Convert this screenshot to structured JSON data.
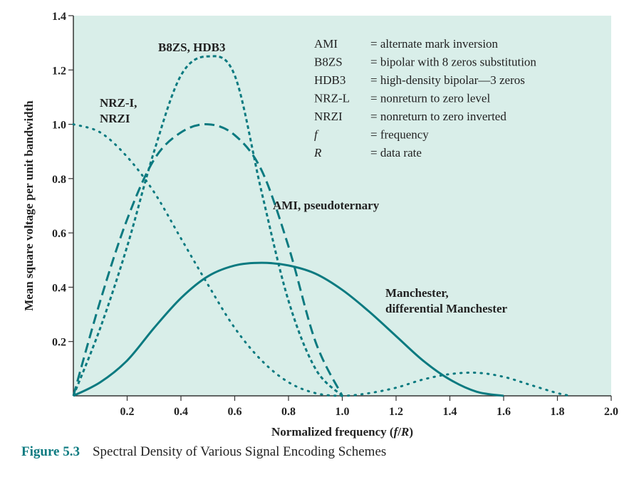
{
  "chart_data": {
    "type": "line",
    "title": "",
    "xlabel": "Normalized frequency (f/R)",
    "ylabel": "Mean square voltage per unit bandwidth",
    "xlim": [
      0,
      2.0
    ],
    "ylim": [
      0,
      1.4
    ],
    "x_ticks": [
      "0.2",
      "0.4",
      "0.6",
      "0.8",
      "1.0",
      "1.2",
      "1.4",
      "1.6",
      "1.8",
      "2.0"
    ],
    "y_ticks": [
      "0.2",
      "0.4",
      "0.6",
      "0.8",
      "1.0",
      "1.2",
      "1.4"
    ],
    "background_color": "#d9eee9",
    "line_color": "#0b7a80",
    "grid": false,
    "series": [
      {
        "name": "NRZ-I, NRZI",
        "style": "dotted",
        "x": [
          0,
          0.1,
          0.2,
          0.3,
          0.4,
          0.5,
          0.6,
          0.7,
          0.8,
          0.9,
          1.0,
          1.1,
          1.2,
          1.3,
          1.4,
          1.5,
          1.6,
          1.7,
          1.8,
          1.85
        ],
        "y": [
          1.0,
          0.97,
          0.88,
          0.75,
          0.58,
          0.41,
          0.25,
          0.13,
          0.05,
          0.01,
          0.0,
          0.01,
          0.03,
          0.06,
          0.08,
          0.085,
          0.07,
          0.04,
          0.01,
          0.0
        ]
      },
      {
        "name": "AMI, pseudoternary",
        "style": "dashed",
        "x": [
          0,
          0.1,
          0.2,
          0.3,
          0.4,
          0.5,
          0.6,
          0.7,
          0.8,
          0.9,
          1.0
        ],
        "y": [
          0.0,
          0.35,
          0.65,
          0.87,
          0.97,
          1.0,
          0.96,
          0.83,
          0.55,
          0.2,
          0.0
        ]
      },
      {
        "name": "B8ZS, HDB3",
        "style": "short-dash",
        "x": [
          0,
          0.1,
          0.2,
          0.3,
          0.4,
          0.5,
          0.6,
          0.7,
          0.8,
          0.9,
          1.0
        ],
        "y": [
          0.0,
          0.25,
          0.55,
          0.9,
          1.18,
          1.25,
          1.18,
          0.75,
          0.35,
          0.1,
          0.0
        ]
      },
      {
        "name": "Manchester, differential Manchester",
        "style": "solid",
        "x": [
          0,
          0.1,
          0.2,
          0.3,
          0.4,
          0.5,
          0.6,
          0.7,
          0.8,
          0.9,
          1.0,
          1.1,
          1.2,
          1.3,
          1.4,
          1.5,
          1.6
        ],
        "y": [
          0.0,
          0.05,
          0.13,
          0.25,
          0.36,
          0.44,
          0.48,
          0.49,
          0.48,
          0.45,
          0.39,
          0.31,
          0.22,
          0.13,
          0.06,
          0.015,
          0.0
        ]
      }
    ],
    "series_labels": [
      {
        "lines": [
          "NRZ-I,",
          "NRZI"
        ]
      },
      {
        "lines": [
          "B8ZS, HDB3"
        ]
      },
      {
        "lines": [
          "AMI, pseudoternary"
        ]
      },
      {
        "lines": [
          "Manchester,",
          "differential Manchester"
        ]
      }
    ],
    "legend": {
      "placement": "top-right",
      "entries": [
        {
          "term": "AMI",
          "definition": "= alternate mark inversion",
          "italic": false
        },
        {
          "term": "B8ZS",
          "definition": "= bipolar with 8 zeros substitution",
          "italic": false
        },
        {
          "term": "HDB3",
          "definition": "= high-density bipolar—3 zeros",
          "italic": false
        },
        {
          "term": "NRZ-L",
          "definition": "= nonreturn to zero level",
          "italic": false
        },
        {
          "term": "NRZI",
          "definition": "= nonreturn to zero inverted",
          "italic": false
        },
        {
          "term": "f",
          "definition": "= frequency",
          "italic": true
        },
        {
          "term": "R",
          "definition": "= data rate",
          "italic": true
        }
      ]
    }
  },
  "caption": {
    "figure_number": "Figure 5.3",
    "text": "Spectral Density of Various Signal Encoding Schemes"
  }
}
